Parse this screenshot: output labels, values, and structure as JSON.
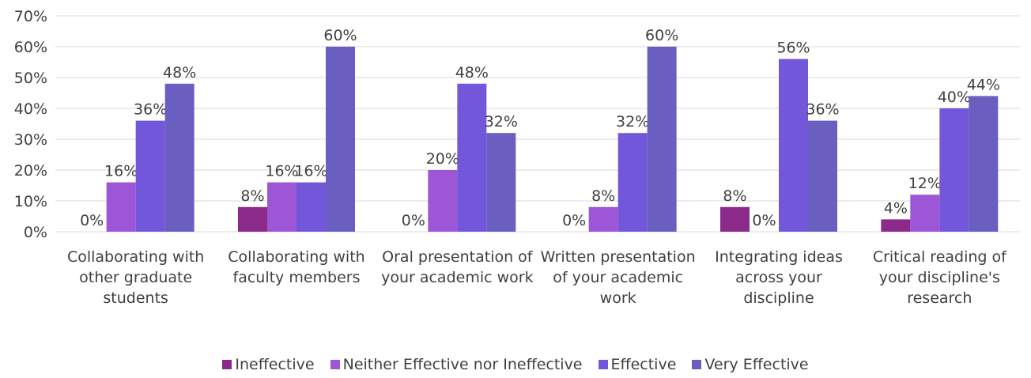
{
  "chart_data": {
    "type": "bar",
    "categories": [
      "Collaborating with other graduate students",
      "Collaborating with faculty members",
      "Oral presentation of your academic work",
      "Written presentation of your academic work",
      "Integrating ideas across your discipline",
      "Critical reading of your discipline's research"
    ],
    "series": [
      {
        "name": "Ineffective",
        "color": "#8b2a8b",
        "values": [
          0,
          8,
          0,
          0,
          8,
          4
        ],
        "value_labels": [
          "0%",
          "8%",
          "0%",
          "0%",
          "8%",
          "4%"
        ]
      },
      {
        "name": "Neither Effective nor Ineffective",
        "color": "#9c56d6",
        "values": [
          16,
          16,
          20,
          8,
          0,
          12
        ],
        "value_labels": [
          "16%",
          "16%",
          "20%",
          "8%",
          "0%",
          "12%"
        ]
      },
      {
        "name": "Effective",
        "color": "#7357da",
        "values": [
          36,
          16,
          48,
          32,
          56,
          40
        ],
        "value_labels": [
          "36%",
          "16%",
          "48%",
          "32%",
          "56%",
          "40%"
        ]
      },
      {
        "name": "Very Effective",
        "color": "#6a5ec0",
        "values": [
          48,
          60,
          32,
          60,
          36,
          44
        ],
        "value_labels": [
          "48%",
          "60%",
          "32%",
          "60%",
          "36%",
          "44%"
        ]
      }
    ],
    "ylim": [
      0,
      70
    ],
    "yticks": [
      {
        "value": 0,
        "label": "0%"
      },
      {
        "value": 10,
        "label": "10%"
      },
      {
        "value": 20,
        "label": "20%"
      },
      {
        "value": 30,
        "label": "30%"
      },
      {
        "value": 40,
        "label": "40%"
      },
      {
        "value": 50,
        "label": "50%"
      },
      {
        "value": 60,
        "label": "60%"
      },
      {
        "value": 70,
        "label": "70%"
      }
    ],
    "grid": true,
    "legend": "bottom"
  }
}
